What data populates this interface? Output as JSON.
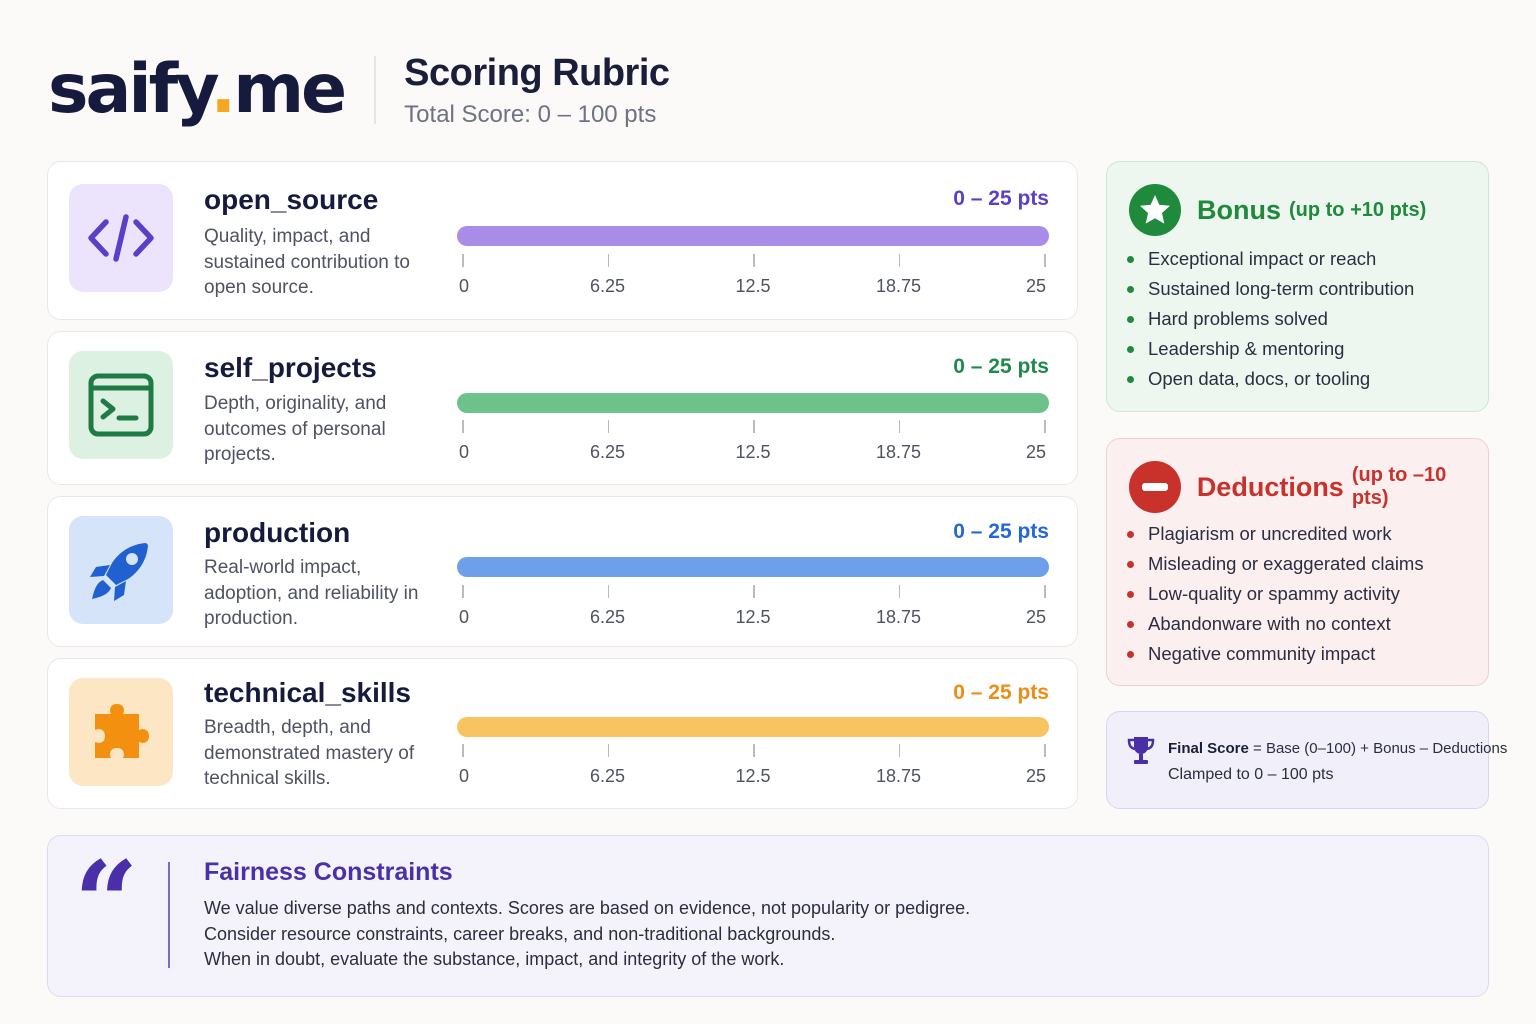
{
  "header": {
    "logo_main": "saify",
    "logo_dot": ".",
    "logo_tld": "me",
    "title": "Scoring Rubric",
    "subtitle": "Total Score: 0 – 100 pts"
  },
  "categories": [
    {
      "name": "open_source",
      "desc": "Quality, impact, and sustained contribution to open source.",
      "range": "0 – 25 pts",
      "icon": "code-icon",
      "value": 25,
      "max": 25,
      "accent": "#5b3fc8",
      "bar_color": "#a78ce8",
      "icon_bg": "#ece4fc",
      "icon_color": "#5b3fc8",
      "ticks": [
        "0",
        "6.25",
        "12.5",
        "18.75",
        "25"
      ]
    },
    {
      "name": "self_projects",
      "desc": "Depth, originality, and outcomes of personal projects.",
      "range": "0 – 25 pts",
      "icon": "terminal-icon",
      "value": 25,
      "max": 25,
      "accent": "#1f8a4c",
      "bar_color": "#6cc28a",
      "icon_bg": "#dcf1e2",
      "icon_color": "#1f7a45",
      "ticks": [
        "0",
        "6.25",
        "12.5",
        "18.75",
        "25"
      ]
    },
    {
      "name": "production",
      "desc": "Real-world impact, adoption, and reliability in production.",
      "range": "0 – 25 pts",
      "icon": "rocket-icon",
      "value": 25,
      "max": 25,
      "accent": "#2467d8",
      "bar_color": "#6d9fea",
      "icon_bg": "#d6e4fa",
      "icon_color": "#2060d0",
      "ticks": [
        "0",
        "6.25",
        "12.5",
        "18.75",
        "25"
      ]
    },
    {
      "name": "technical_skills",
      "desc": "Breadth, depth, and demonstrated mastery of technical skills.",
      "range": "0 – 25 pts",
      "icon": "puzzle-icon",
      "value": 25,
      "max": 25,
      "accent": "#f08c14",
      "bar_color": "#f8c462",
      "icon_bg": "#fde6c4",
      "icon_color": "#f3900f",
      "ticks": [
        "0",
        "6.25",
        "12.5",
        "18.75",
        "25"
      ]
    }
  ],
  "bonus": {
    "title": "Bonus",
    "note": "(up to +10 pts)",
    "icon": "star-icon",
    "accent": "#1f8a3c",
    "items": [
      "Exceptional impact or reach",
      "Sustained long-term contribution",
      "Hard problems solved",
      "Leadership & mentoring",
      "Open data, docs, or tooling"
    ]
  },
  "deductions": {
    "title": "Deductions",
    "note": "(up to –10 pts)",
    "icon": "minus-circle-icon",
    "accent": "#c8322b",
    "items": [
      "Plagiarism or uncredited work",
      "Misleading or exaggerated claims",
      "Low-quality or spammy activity",
      "Abandonware with no context",
      "Negative community impact"
    ]
  },
  "final": {
    "label": "Final Score",
    "formula": " = Base (0–100) + Bonus – Deductions",
    "clamp": "Clamped to 0 – 100 pts",
    "icon": "trophy-icon"
  },
  "fairness": {
    "title": "Fairness Constraints",
    "quote_glyph": "“",
    "lines": [
      "We value diverse paths and contexts. Scores are based on evidence, not popularity or pedigree.",
      "Consider resource constraints, career breaks, and non-traditional backgrounds.",
      "When in doubt, evaluate the substance, impact, and integrity of the work."
    ]
  }
}
